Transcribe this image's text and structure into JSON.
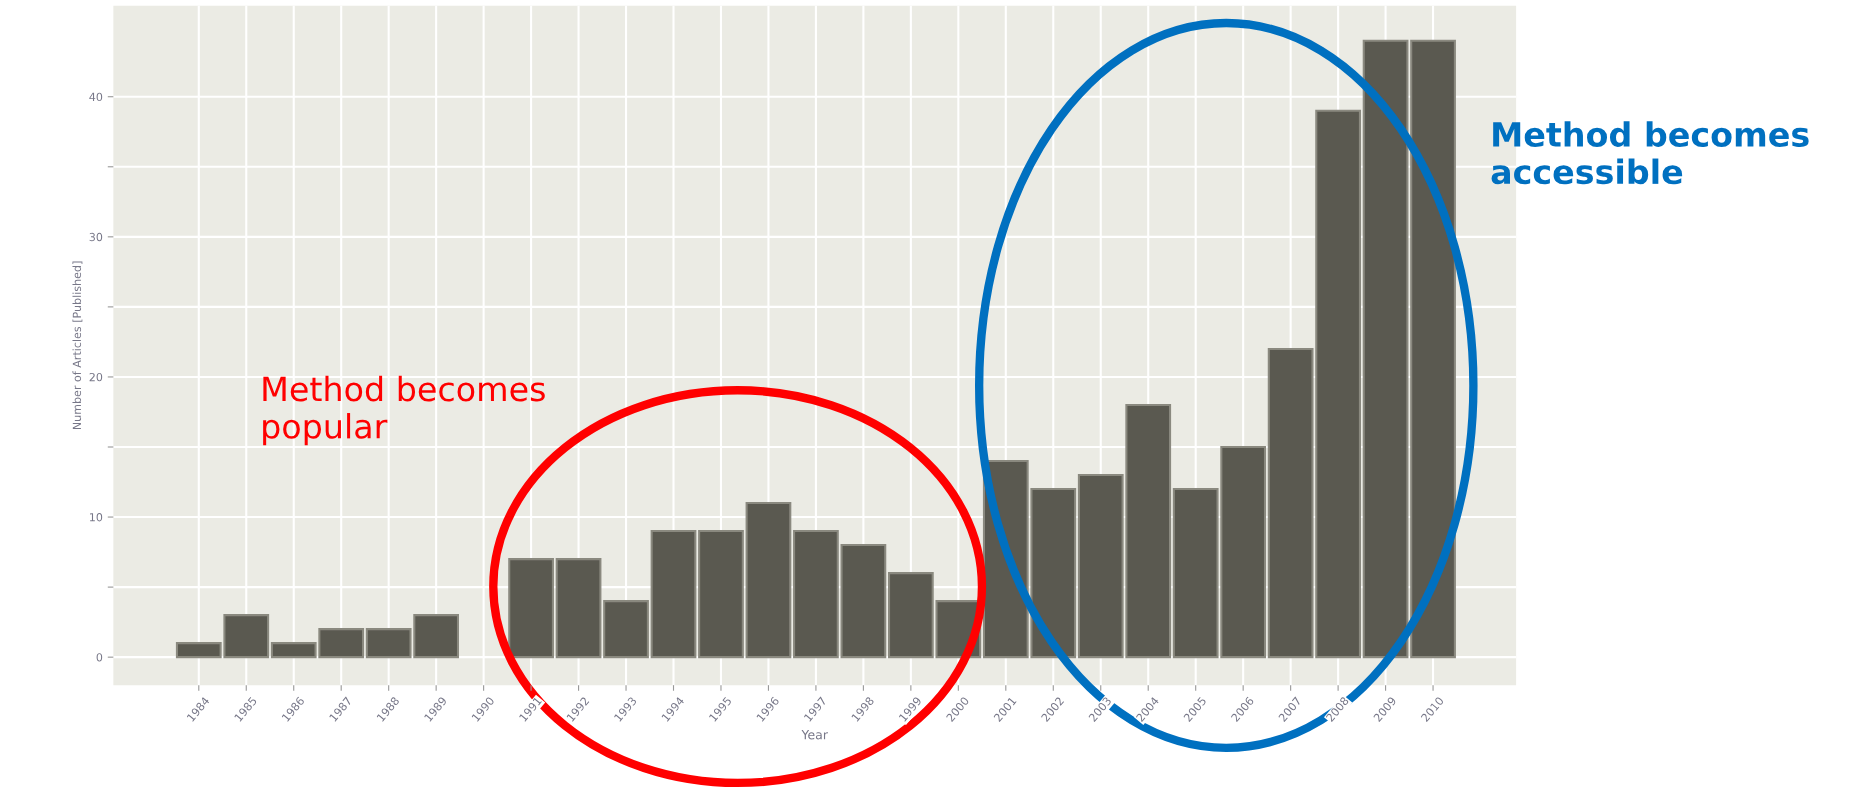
{
  "chart_data": {
    "type": "bar",
    "xlabel": "Year",
    "ylabel": "Number of Articles [Published]",
    "categories": [
      "1984",
      "1985",
      "1986",
      "1987",
      "1988",
      "1989",
      "1990",
      "1991",
      "1992",
      "1993",
      "1994",
      "1995",
      "1996",
      "1997",
      "1998",
      "1999",
      "2000",
      "2001",
      "2002",
      "2003",
      "2004",
      "2005",
      "2006",
      "2007",
      "2008",
      "2009",
      "2010"
    ],
    "values": [
      1,
      3,
      1,
      2,
      2,
      3,
      null,
      7,
      7,
      4,
      9,
      9,
      11,
      9,
      8,
      6,
      4,
      14,
      12,
      13,
      18,
      12,
      15,
      22,
      39,
      44,
      44
    ],
    "color": "#5a5950",
    "ylim": [
      -2,
      46.5
    ],
    "yticks": [
      0,
      {
        "value": 5,
        "label": null
      },
      10,
      {
        "value": 15,
        "label": null
      },
      20,
      {
        "value": 25,
        "label": null
      },
      30,
      {
        "value": 35,
        "label": null
      },
      40
    ],
    "grid": true,
    "annotations": [
      "Method becomes\npopular",
      "Method becomes\naccessible"
    ]
  }
}
